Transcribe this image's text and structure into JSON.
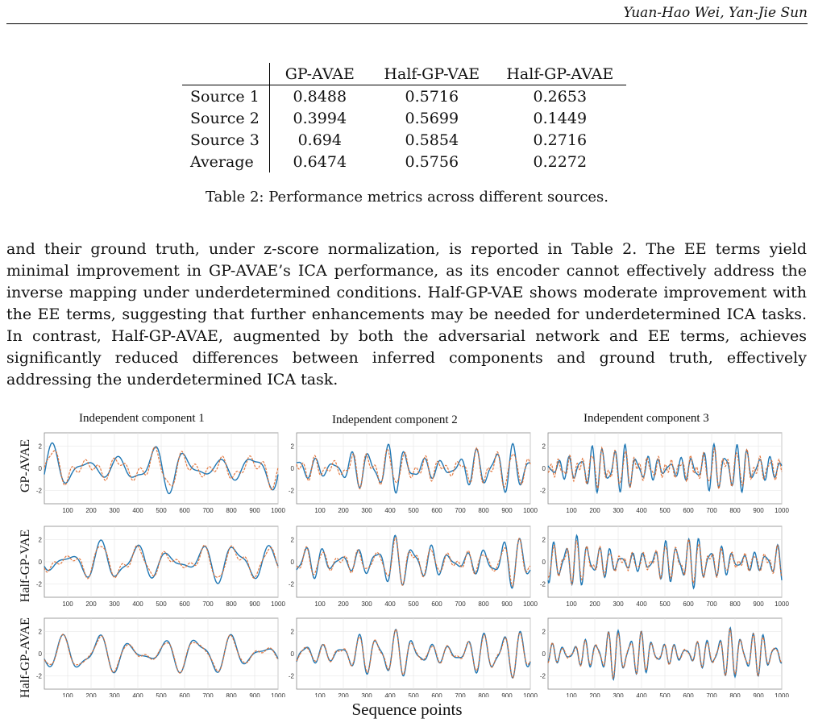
{
  "header": {
    "authors": "Yuan-Hao Wei, Yan-Jie Sun"
  },
  "table": {
    "columns": [
      "GP-AVAE",
      "Half-GP-VAE",
      "Half-GP-AVAE"
    ],
    "rows": [
      {
        "label": "Source 1",
        "values": [
          "0.8488",
          "0.5716",
          "0.2653"
        ]
      },
      {
        "label": "Source 2",
        "values": [
          "0.3994",
          "0.5699",
          "0.1449"
        ]
      },
      {
        "label": "Source 3",
        "values": [
          "0.694",
          "0.5854",
          "0.2716"
        ]
      },
      {
        "label": "Average",
        "values": [
          "0.6474",
          "0.5756",
          "0.2272"
        ]
      }
    ],
    "caption": "Table 2: Performance metrics across different sources."
  },
  "paragraph": "and their ground truth, under z-score normalization, is reported in Table 2. The EE terms yield minimal improvement in GP-AVAE’s ICA performance, as its encoder cannot effectively address the inverse mapping under underdetermined conditions. Half-GP-VAE shows moderate improvement with the EE terms, suggesting that further enhancements may be needed for underdetermined ICA tasks. In contrast, Half-GP-AVAE, augmented by both the adversarial network and EE terms, achieves significantly reduced differences between inferred components and ground truth, effectively addressing the underdetermined ICA task.",
  "figure": {
    "col_titles": [
      "Independent component 1",
      "Independent component 2",
      "Independent component 3"
    ],
    "row_labels": [
      "GP-AVAE",
      "Half-GP-VAE",
      "Half-GP-AVAE"
    ],
    "xlabel": "Sequence points",
    "colors": {
      "truth": "#1f77b4",
      "inferred": "#e06a2c",
      "grid": "#e4e4e4",
      "axis": "#888888"
    },
    "chart_data": {
      "type": "line",
      "x_ticks": [
        100,
        200,
        300,
        400,
        500,
        600,
        700,
        800,
        900,
        1000
      ],
      "y_ticks": [
        -2,
        0,
        2
      ],
      "xlim": [
        0,
        1000
      ],
      "ylim": [
        -3.2,
        3.2
      ],
      "grid": true
    }
  }
}
